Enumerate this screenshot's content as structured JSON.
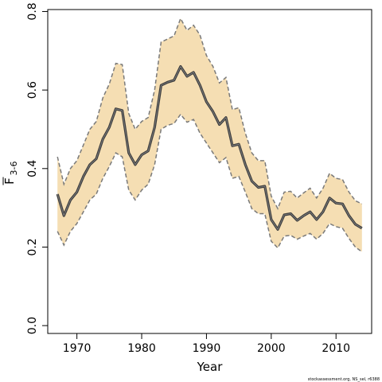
{
  "chart_data": {
    "type": "line",
    "xlabel": "Year",
    "ylabel": {
      "main": "F",
      "sub": "3-6"
    },
    "xlim": [
      1965.5,
      2015.5
    ],
    "ylim": [
      -0.02,
      0.805
    ],
    "x_ticks": [
      1970,
      1980,
      1990,
      2000,
      2010
    ],
    "y_ticks": [
      0.0,
      0.2,
      0.4,
      0.6,
      0.8
    ],
    "x_tick_labels": [
      "1970",
      "1980",
      "1990",
      "2000",
      "2010"
    ],
    "y_tick_labels": [
      "0.0",
      "0.2",
      "0.4",
      "0.6",
      "0.8"
    ],
    "grid": false,
    "colors": {
      "band_fill": "#f5deb3",
      "band_border": "#7a7a7a",
      "line": "#3c3c3c"
    },
    "series": [
      {
        "x": [
          1967,
          1968,
          1969,
          1970,
          1971,
          1972,
          1973,
          1974,
          1975,
          1976,
          1977,
          1978,
          1979,
          1980,
          1981,
          1982,
          1983,
          1984,
          1985,
          1986,
          1987,
          1988,
          1989,
          1990,
          1991,
          1992,
          1993,
          1994,
          1995,
          1996,
          1997,
          1998,
          1999,
          2000,
          2001,
          2002,
          2003,
          2004,
          2005,
          2006,
          2007,
          2008,
          2009,
          2010,
          2011,
          2012,
          2013,
          2014
        ],
        "values": [
          0.335,
          0.28,
          0.32,
          0.34,
          0.38,
          0.41,
          0.425,
          0.475,
          0.505,
          0.552,
          0.548,
          0.44,
          0.41,
          0.435,
          0.445,
          0.505,
          0.612,
          0.62,
          0.625,
          0.66,
          0.635,
          0.645,
          0.612,
          0.57,
          0.545,
          0.512,
          0.53,
          0.458,
          0.462,
          0.41,
          0.368,
          0.352,
          0.355,
          0.27,
          0.245,
          0.282,
          0.285,
          0.268,
          0.28,
          0.29,
          0.27,
          0.29,
          0.325,
          0.312,
          0.31,
          0.28,
          0.258,
          0.248
        ]
      },
      {
        "x": [
          1967,
          1968,
          1969,
          1970,
          1971,
          1972,
          1973,
          1974,
          1975,
          1976,
          1977,
          1978,
          1979,
          1980,
          1981,
          1982,
          1983,
          1984,
          1985,
          1986,
          1987,
          1988,
          1989,
          1990,
          1991,
          1992,
          1993,
          1994,
          1995,
          1996,
          1997,
          1998,
          1999,
          2000,
          2001,
          2002,
          2003,
          2004,
          2005,
          2006,
          2007,
          2008,
          2009,
          2010,
          2011,
          2012,
          2013,
          2014
        ],
        "values": [
          0.43,
          0.36,
          0.4,
          0.42,
          0.46,
          0.5,
          0.52,
          0.58,
          0.615,
          0.668,
          0.665,
          0.54,
          0.5,
          0.52,
          0.53,
          0.6,
          0.722,
          0.73,
          0.738,
          0.782,
          0.752,
          0.765,
          0.74,
          0.688,
          0.66,
          0.618,
          0.632,
          0.55,
          0.555,
          0.49,
          0.44,
          0.42,
          0.42,
          0.33,
          0.298,
          0.34,
          0.342,
          0.325,
          0.338,
          0.35,
          0.325,
          0.35,
          0.388,
          0.375,
          0.372,
          0.34,
          0.318,
          0.31
        ]
      },
      {
        "x": [
          1967,
          1968,
          1969,
          1970,
          1971,
          1972,
          1973,
          1974,
          1975,
          1976,
          1977,
          1978,
          1979,
          1980,
          1981,
          1982,
          1983,
          1984,
          1985,
          1986,
          1987,
          1988,
          1989,
          1990,
          1991,
          1992,
          1993,
          1994,
          1995,
          1996,
          1997,
          1998,
          1999,
          2000,
          2001,
          2002,
          2003,
          2004,
          2005,
          2006,
          2007,
          2008,
          2009,
          2010,
          2011,
          2012,
          2013,
          2014
        ],
        "values": [
          0.24,
          0.205,
          0.24,
          0.26,
          0.29,
          0.32,
          0.335,
          0.375,
          0.405,
          0.44,
          0.43,
          0.345,
          0.32,
          0.345,
          0.36,
          0.41,
          0.5,
          0.51,
          0.515,
          0.538,
          0.518,
          0.525,
          0.49,
          0.465,
          0.44,
          0.415,
          0.428,
          0.375,
          0.38,
          0.34,
          0.298,
          0.285,
          0.285,
          0.215,
          0.198,
          0.228,
          0.23,
          0.22,
          0.228,
          0.235,
          0.22,
          0.235,
          0.26,
          0.252,
          0.248,
          0.222,
          0.2,
          0.188
        ]
      }
    ]
  },
  "watermark": "stockassessment.org, NS_sel, r6388"
}
